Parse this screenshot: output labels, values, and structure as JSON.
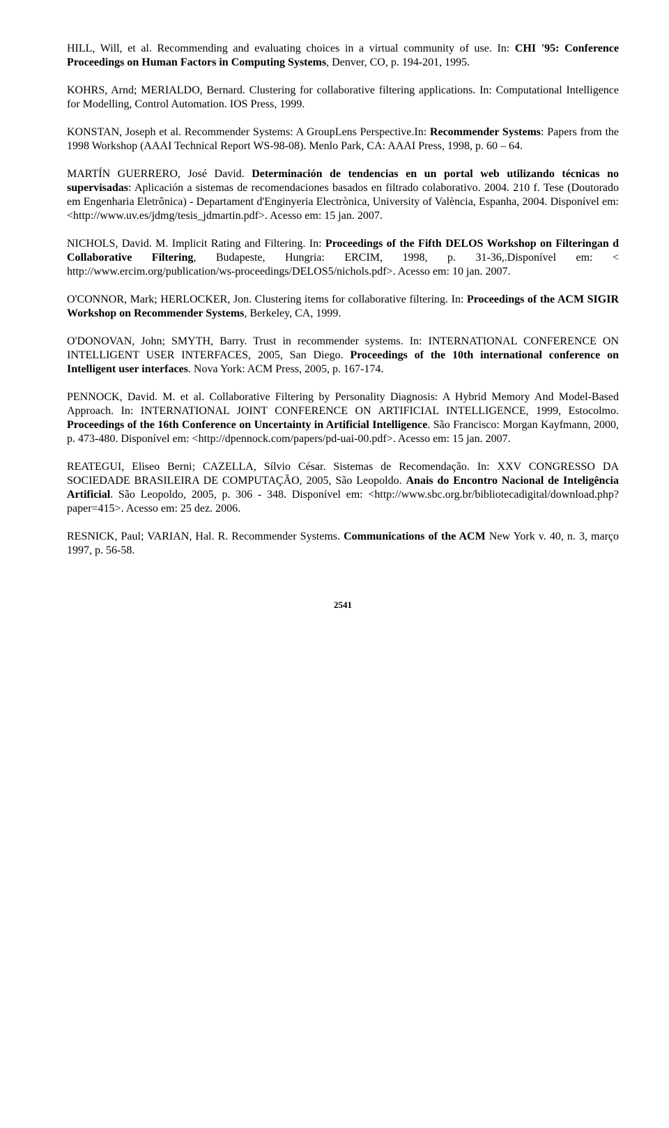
{
  "references": [
    {
      "segments": [
        {
          "text": "HILL, Will, et al. Recommending and evaluating choices in a virtual community of use. In: ",
          "bold": false
        },
        {
          "text": "CHI '95: Conference Proceedings on Human Factors in Computing Systems",
          "bold": true
        },
        {
          "text": ", Denver, CO, p. 194-201, 1995.",
          "bold": false
        }
      ]
    },
    {
      "segments": [
        {
          "text": "KOHRS, Arnd; MERIALDO, Bernard. Clustering for collaborative filtering applications. In: Computational Intelligence for Modelling, Control Automation. IOS Press, 1999.",
          "bold": false
        }
      ]
    },
    {
      "segments": [
        {
          "text": "KONSTAN, Joseph et al. Recommender Systems: A GroupLens Perspective.In: ",
          "bold": false
        },
        {
          "text": "Recommender Systems",
          "bold": true
        },
        {
          "text": ": Papers from the 1998 Workshop (AAAI Technical Report WS-98-08). Menlo Park, CA: AAAI Press, 1998, p. 60 – 64.",
          "bold": false
        }
      ]
    },
    {
      "segments": [
        {
          "text": "MARTÍN GUERRERO, José David. ",
          "bold": false
        },
        {
          "text": "Determinación de tendencias en un portal web utilizando técnicas no supervisadas",
          "bold": true
        },
        {
          "text": ": Aplicación a sistemas de recomendaciones basados en filtrado colaborativo. 2004. 210 f. Tese (Doutorado em Engenharia Eletrônica) - Departament d'Enginyeria Electrònica, University of València, Espanha, 2004. Disponível em: <http://www.uv.es/jdmg/tesis_jdmartin.pdf>. Acesso em: 15 jan. 2007.",
          "bold": false
        }
      ]
    },
    {
      "segments": [
        {
          "text": "NICHOLS, David. M. Implicit Rating and Filtering. In: ",
          "bold": false
        },
        {
          "text": "Proceedings of the Fifth DELOS Workshop on Filteringan d Collaborative Filtering",
          "bold": true
        },
        {
          "text": ", Budapeste, Hungria: ERCIM, 1998, p. 31-36,.Disponível em: < http://www.ercim.org/publication/ws-proceedings/DELOS5/nichols.pdf>. Acesso em: 10 jan. 2007.",
          "bold": false
        }
      ]
    },
    {
      "segments": [
        {
          "text": "O'CONNOR, Mark; HERLOCKER, Jon. Clustering items for collaborative filtering. In: ",
          "bold": false
        },
        {
          "text": "Proceedings of the ACM SIGIR Workshop on Recommender Systems",
          "bold": true
        },
        {
          "text": ", Berkeley, CA, 1999.",
          "bold": false
        }
      ]
    },
    {
      "segments": [
        {
          "text": "O'DONOVAN, John; SMYTH, Barry. Trust in recommender systems. In: INTERNATIONAL CONFERENCE ON INTELLIGENT USER INTERFACES, 2005, San Diego. ",
          "bold": false
        },
        {
          "text": "Proceedings of the 10th international conference on Intelligent user interfaces",
          "bold": true
        },
        {
          "text": ". Nova York: ACM Press, 2005, p. 167-174.",
          "bold": false
        }
      ]
    },
    {
      "segments": [
        {
          "text": "PENNOCK, David. M. et al. Collaborative Filtering by Personality Diagnosis: A Hybrid Memory And Model-Based Approach. In: INTERNATIONAL JOINT CONFERENCE ON ARTIFICIAL INTELLIGENCE, 1999, Estocolmo. ",
          "bold": false
        },
        {
          "text": "Proceedings of the 16th Conference on Uncertainty in Artificial Intelligence",
          "bold": true
        },
        {
          "text": ". São Francisco: Morgan Kayfmann, 2000, p. 473-480. Disponível em: <http://dpennock.com/papers/pd-uai-00.pdf>. Acesso em: 15 jan. 2007.",
          "bold": false
        }
      ]
    },
    {
      "segments": [
        {
          "text": "REATEGUI, Eliseo Berni; CAZELLA, Sílvio César. Sistemas de Recomendação.  In: XXV CONGRESSO DA SOCIEDADE BRASILEIRA DE COMPUTAÇÃO, 2005, São Leopoldo. ",
          "bold": false
        },
        {
          "text": "Anais do Encontro Nacional de Inteligência Artificial",
          "bold": true
        },
        {
          "text": ". São Leopoldo, 2005, p. 306 - 348. Disponível em: <http://www.sbc.org.br/bibliotecadigital/download.php?paper=415>. Acesso em: 25 dez. 2006.",
          "bold": false
        }
      ]
    },
    {
      "segments": [
        {
          "text": "RESNICK, Paul; VARIAN, Hal. R. Recommender Systems. ",
          "bold": false
        },
        {
          "text": "Communications of the ACM ",
          "bold": true
        },
        {
          "text": "New York  v. 40, n. 3, março 1997, p. 56-58.",
          "bold": false
        }
      ]
    }
  ],
  "page_number": "2541"
}
